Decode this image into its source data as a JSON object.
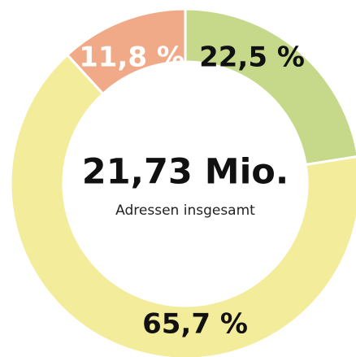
{
  "chart_data": {
    "type": "donut",
    "center_title": "21,73 Mio.",
    "center_subtitle": "Adressen insgesamt",
    "values": [
      22.5,
      65.7,
      11.8
    ],
    "value_labels": [
      "22,5 %",
      "65,7 %",
      "11,8 %"
    ],
    "colors": [
      "#c6d98b",
      "#f3ec9b",
      "#f1aa88"
    ],
    "label_colors": [
      "#111111",
      "#111111",
      "#ffffff"
    ]
  }
}
